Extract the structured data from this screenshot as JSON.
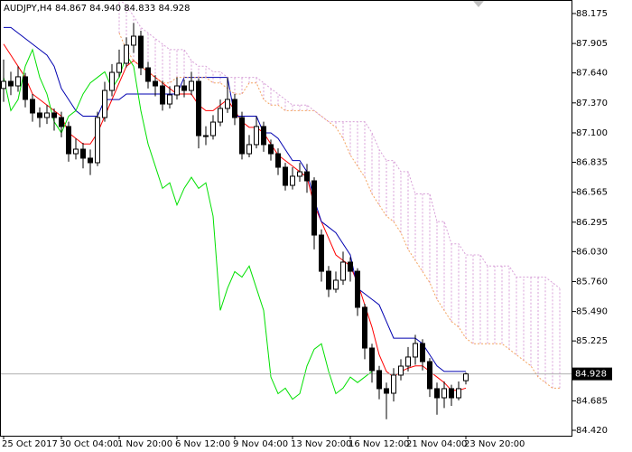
{
  "chart_data": {
    "type": "candlestick",
    "title": "AUDJPY,H4  84.867 84.940 84.833 84.928",
    "categories": [
      "25 Oct 2017",
      null,
      null,
      null,
      null,
      null,
      null,
      null,
      "30 Oct 04:00",
      null,
      null,
      null,
      null,
      null,
      null,
      null,
      "1 Nov 20:00",
      null,
      null,
      null,
      null,
      null,
      null,
      null,
      "6 Nov 12:00",
      null,
      null,
      null,
      null,
      null,
      null,
      null,
      "9 Nov 04:00",
      null,
      null,
      null,
      null,
      null,
      null,
      null,
      "13 Nov 20:00",
      null,
      null,
      null,
      null,
      null,
      null,
      null,
      "16 Nov 12:00",
      null,
      null,
      null,
      null,
      null,
      null,
      null,
      "21 Nov 04:00",
      null,
      null,
      null,
      null,
      null,
      null,
      null,
      "23 Nov 20:00",
      null,
      null,
      null,
      null,
      null,
      null,
      null,
      null,
      null,
      null,
      null,
      null,
      null
    ],
    "candles": {
      "open": [
        87.5,
        87.564,
        87.523,
        87.605,
        87.401,
        87.279,
        87.238,
        87.279,
        87.238,
        87.157,
        86.912,
        86.953,
        86.872,
        86.831,
        87.238,
        87.482,
        87.645,
        87.727,
        87.89,
        87.971,
        87.686,
        87.564,
        87.523,
        87.36,
        87.442,
        87.523,
        87.482,
        87.564,
        87.075,
        87.075,
        87.197,
        87.32,
        87.401,
        87.238,
        86.912,
        86.994,
        87.157,
        86.994,
        86.912,
        86.79,
        86.627,
        86.709,
        86.749,
        86.668,
        86.179,
        85.853,
        85.691,
        85.772,
        85.935,
        85.853,
        85.528,
        85.161,
        84.958,
        84.795,
        84.754,
        84.917,
        84.998,
        85.08,
        85.202,
        85.039,
        84.795,
        84.713,
        84.795,
        84.713,
        84.867,
        null,
        null,
        null,
        null,
        null,
        null,
        null,
        null,
        null,
        null,
        null,
        null,
        null
      ],
      "high": [
        87.76,
        87.65,
        87.7,
        87.64,
        87.45,
        87.33,
        87.35,
        87.32,
        87.29,
        87.2,
        87.05,
        87.01,
        86.95,
        87.29,
        87.56,
        87.72,
        87.85,
        87.96,
        88.09,
        88.02,
        87.74,
        87.62,
        87.57,
        87.52,
        87.6,
        87.58,
        87.65,
        87.59,
        87.16,
        87.26,
        87.4,
        87.6,
        87.45,
        87.29,
        87.08,
        87.25,
        87.2,
        87.04,
        86.96,
        86.83,
        86.79,
        86.83,
        86.82,
        86.7,
        86.23,
        85.9,
        85.85,
        86.03,
        85.98,
        85.88,
        85.56,
        85.2,
        85.0,
        84.85,
        84.98,
        85.06,
        85.17,
        85.28,
        85.24,
        85.07,
        84.85,
        84.86,
        84.83,
        84.86,
        84.94,
        null,
        null,
        null,
        null,
        null,
        null,
        null,
        null,
        null,
        null,
        null,
        null,
        null
      ],
      "low": [
        87.38,
        87.44,
        87.47,
        87.33,
        87.2,
        87.15,
        87.18,
        87.12,
        87.06,
        86.84,
        86.86,
        86.78,
        86.72,
        86.8,
        87.2,
        87.43,
        87.6,
        87.69,
        87.82,
        87.62,
        87.5,
        87.43,
        87.3,
        87.32,
        87.4,
        87.42,
        87.44,
        86.96,
        86.99,
        87.04,
        87.16,
        87.28,
        87.17,
        86.86,
        86.88,
        86.96,
        86.93,
        86.85,
        86.72,
        86.58,
        86.59,
        86.66,
        86.56,
        86.05,
        85.76,
        85.62,
        85.66,
        85.73,
        85.76,
        85.45,
        85.06,
        84.85,
        84.7,
        84.52,
        84.68,
        84.87,
        84.95,
        85.01,
        84.96,
        84.72,
        84.56,
        84.62,
        84.64,
        84.69,
        84.833,
        null,
        null,
        null,
        null,
        null,
        null,
        null,
        null,
        null,
        null,
        null,
        null,
        null
      ],
      "close": [
        87.564,
        87.523,
        87.605,
        87.401,
        87.279,
        87.238,
        87.279,
        87.238,
        87.157,
        86.912,
        86.953,
        86.872,
        86.831,
        87.238,
        87.482,
        87.645,
        87.727,
        87.89,
        87.971,
        87.686,
        87.564,
        87.523,
        87.36,
        87.442,
        87.523,
        87.482,
        87.564,
        87.075,
        87.075,
        87.197,
        87.32,
        87.401,
        87.238,
        86.912,
        86.994,
        87.157,
        86.994,
        86.912,
        86.79,
        86.627,
        86.709,
        86.749,
        86.668,
        86.179,
        85.853,
        85.691,
        85.772,
        85.935,
        85.853,
        85.528,
        85.161,
        84.958,
        84.795,
        84.754,
        84.917,
        84.998,
        85.08,
        85.202,
        85.039,
        84.795,
        84.713,
        84.795,
        84.713,
        84.795,
        84.928,
        null,
        null,
        null,
        null,
        null,
        null,
        null,
        null,
        null,
        null,
        null,
        null,
        null
      ]
    },
    "series": [
      {
        "color": "#ff0000",
        "style": "solid",
        "values": [
          87.9,
          87.8,
          87.7,
          87.6,
          87.45,
          87.4,
          87.35,
          87.3,
          87.25,
          87.1,
          87.05,
          87.0,
          87.0,
          87.1,
          87.25,
          87.4,
          87.55,
          87.7,
          87.75,
          87.7,
          87.65,
          87.6,
          87.55,
          87.5,
          87.45,
          87.45,
          87.45,
          87.35,
          87.3,
          87.3,
          87.35,
          87.4,
          87.3,
          87.2,
          87.15,
          87.15,
          87.1,
          87.0,
          86.9,
          86.85,
          86.8,
          86.75,
          86.7,
          86.45,
          86.3,
          86.15,
          86.0,
          85.95,
          85.9,
          85.75,
          85.55,
          85.35,
          85.1,
          84.95,
          84.9,
          84.95,
          84.98,
          85.0,
          85.0,
          84.95,
          84.9,
          84.85,
          84.78,
          84.78,
          84.8,
          null,
          null,
          null,
          null,
          null,
          null,
          null,
          null,
          null,
          null,
          null,
          null,
          null
        ]
      },
      {
        "color": "#0000b0",
        "style": "solid",
        "values": [
          88.05,
          88.05,
          88.0,
          87.95,
          87.9,
          87.85,
          87.8,
          87.7,
          87.5,
          87.4,
          87.3,
          87.25,
          87.25,
          87.25,
          87.4,
          87.4,
          87.4,
          87.45,
          87.45,
          87.45,
          87.45,
          87.45,
          87.45,
          87.45,
          87.45,
          87.6,
          87.6,
          87.6,
          87.6,
          87.6,
          87.6,
          87.6,
          87.25,
          87.25,
          87.25,
          87.25,
          87.1,
          87.1,
          87.05,
          86.95,
          86.85,
          86.85,
          86.75,
          86.5,
          86.3,
          86.25,
          86.2,
          86.1,
          86.0,
          85.7,
          85.65,
          85.6,
          85.55,
          85.4,
          85.25,
          85.25,
          85.25,
          85.25,
          85.2,
          85.1,
          85.0,
          84.95,
          84.95,
          84.95,
          84.95,
          null,
          null,
          null,
          null,
          null,
          null,
          null,
          null,
          null,
          null,
          null,
          null,
          null
        ]
      },
      {
        "color": "#00e000",
        "style": "solid",
        "values": [
          87.6,
          87.3,
          87.4,
          87.7,
          87.85,
          87.6,
          87.45,
          87.2,
          87.1,
          87.25,
          87.3,
          87.45,
          87.55,
          87.6,
          87.65,
          87.5,
          87.6,
          87.8,
          87.7,
          87.3,
          87.0,
          86.8,
          86.6,
          86.65,
          86.45,
          86.6,
          86.7,
          86.6,
          86.65,
          86.35,
          85.5,
          85.7,
          85.85,
          85.8,
          85.9,
          85.7,
          85.5,
          84.9,
          84.75,
          84.8,
          84.7,
          84.75,
          85.0,
          85.15,
          85.2,
          84.95,
          84.75,
          84.8,
          84.9,
          84.85,
          84.9,
          84.95,
          null,
          null,
          null,
          null,
          null,
          null,
          null,
          null,
          null,
          null,
          null,
          null,
          null,
          null,
          null,
          null,
          null,
          null,
          null,
          null,
          null,
          null,
          null,
          null,
          null,
          null
        ]
      },
      {
        "color": "#f4a460",
        "style": "dotted",
        "values": [
          null,
          null,
          null,
          null,
          null,
          null,
          null,
          null,
          null,
          null,
          null,
          null,
          null,
          null,
          null,
          null,
          88.0,
          87.85,
          87.75,
          87.7,
          87.65,
          87.6,
          87.55,
          87.55,
          87.6,
          87.6,
          87.6,
          87.6,
          87.6,
          87.55,
          87.55,
          87.5,
          87.45,
          87.45,
          87.55,
          87.55,
          87.4,
          87.35,
          87.35,
          87.3,
          87.3,
          87.3,
          87.3,
          87.3,
          87.25,
          87.2,
          87.15,
          87.05,
          86.9,
          86.8,
          86.7,
          86.55,
          86.45,
          86.35,
          86.3,
          86.2,
          86.05,
          85.95,
          85.85,
          85.75,
          85.6,
          85.5,
          85.4,
          85.35,
          85.25,
          85.2,
          85.2,
          85.2,
          85.2,
          85.2,
          85.15,
          85.1,
          85.05,
          85.0,
          84.9,
          84.85,
          84.8,
          84.8
        ]
      },
      {
        "color": "#d8a0d8",
        "style": "dotted",
        "values": [
          null,
          null,
          null,
          null,
          null,
          null,
          null,
          null,
          null,
          null,
          null,
          null,
          null,
          null,
          null,
          null,
          88.3,
          88.25,
          88.15,
          88.05,
          88.0,
          87.95,
          87.9,
          87.85,
          87.85,
          87.85,
          87.75,
          87.7,
          87.7,
          87.65,
          87.65,
          87.6,
          87.6,
          87.6,
          87.6,
          87.6,
          87.55,
          87.5,
          87.45,
          87.4,
          87.35,
          87.35,
          87.35,
          87.3,
          87.25,
          87.2,
          87.2,
          87.2,
          87.2,
          87.2,
          87.2,
          87.1,
          86.95,
          86.85,
          86.85,
          86.75,
          86.75,
          86.55,
          86.55,
          86.55,
          86.3,
          86.3,
          86.1,
          86.1,
          86.0,
          86.0,
          86.0,
          85.9,
          85.9,
          85.9,
          85.9,
          85.8,
          85.8,
          85.8,
          85.8,
          85.8,
          85.75,
          85.7
        ]
      }
    ],
    "cloud_color": "#d8a0d8",
    "last_price": 84.928,
    "ylim": [
      84.371,
      88.297
    ],
    "yticks": [
      88.175,
      87.905,
      {
        "value": 87.64,
        "label": "87.640"
      },
      {
        "value": 87.37,
        "label": "87.370"
      },
      {
        "value": 87.1,
        "label": "87.100"
      },
      86.835,
      86.565,
      86.295,
      {
        "value": 86.03,
        "label": "86.030"
      },
      {
        "value": 85.76,
        "label": "85.760"
      },
      {
        "value": 85.49,
        "label": "85.490"
      },
      85.225,
      84.685,
      {
        "value": 84.42,
        "label": "84.420"
      }
    ]
  }
}
